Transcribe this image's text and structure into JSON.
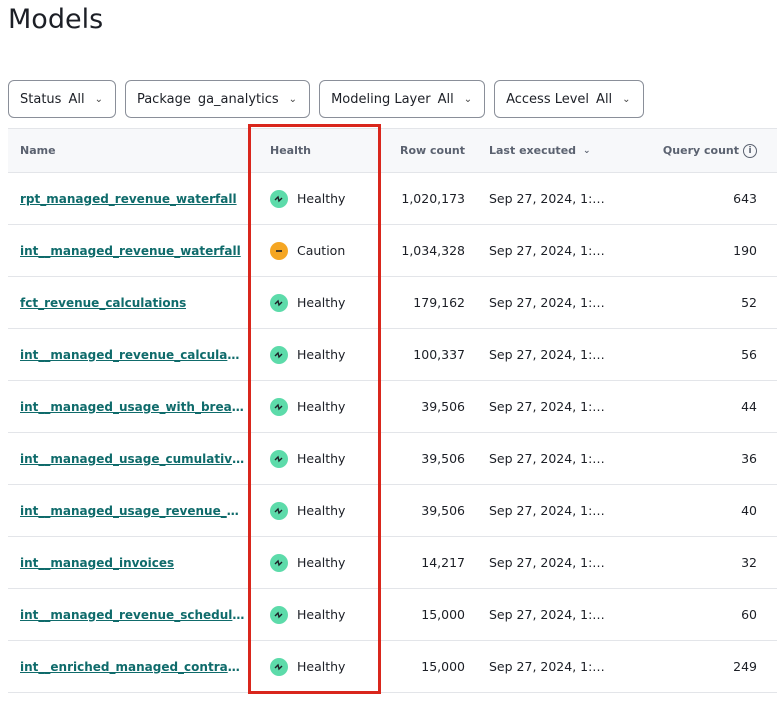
{
  "title": "Models",
  "filters": [
    {
      "label": "Status",
      "value": "All"
    },
    {
      "label": "Package",
      "value": "ga_analytics"
    },
    {
      "label": "Modeling Layer",
      "value": "All"
    },
    {
      "label": "Access Level",
      "value": "All"
    }
  ],
  "columns": {
    "name": "Name",
    "health": "Health",
    "row_count": "Row count",
    "last_executed": "Last executed",
    "query_count": "Query count"
  },
  "colors": {
    "healthy": "#5ddbaa",
    "caution": "#f5a623",
    "link": "#0f6b6b",
    "highlight": "#d9261c"
  },
  "rows": [
    {
      "name": "rpt_managed_revenue_waterfall",
      "health": "Healthy",
      "status": "healthy",
      "row_count": "1,020,173",
      "last_executed": "Sep 27, 2024, 1:…",
      "query_count": "643"
    },
    {
      "name": "int__managed_revenue_waterfall",
      "health": "Caution",
      "status": "caution",
      "row_count": "1,034,328",
      "last_executed": "Sep 27, 2024, 1:…",
      "query_count": "190"
    },
    {
      "name": "fct_revenue_calculations",
      "health": "Healthy",
      "status": "healthy",
      "row_count": "179,162",
      "last_executed": "Sep 27, 2024, 1:…",
      "query_count": "52"
    },
    {
      "name": "int__managed_revenue_calculations",
      "health": "Healthy",
      "status": "healthy",
      "row_count": "100,337",
      "last_executed": "Sep 27, 2024, 1:…",
      "query_count": "56"
    },
    {
      "name": "int__managed_usage_with_breaka…",
      "health": "Healthy",
      "status": "healthy",
      "row_count": "39,506",
      "last_executed": "Sep 27, 2024, 1:…",
      "query_count": "44"
    },
    {
      "name": "int__managed_usage_cumulative_…",
      "health": "Healthy",
      "status": "healthy",
      "row_count": "39,506",
      "last_executed": "Sep 27, 2024, 1:…",
      "query_count": "36"
    },
    {
      "name": "int__managed_usage_revenue_sc…",
      "health": "Healthy",
      "status": "healthy",
      "row_count": "39,506",
      "last_executed": "Sep 27, 2024, 1:…",
      "query_count": "40"
    },
    {
      "name": "int__managed_invoices",
      "health": "Healthy",
      "status": "healthy",
      "row_count": "14,217",
      "last_executed": "Sep 27, 2024, 1:…",
      "query_count": "32"
    },
    {
      "name": "int__managed_revenue_schedule_…",
      "health": "Healthy",
      "status": "healthy",
      "row_count": "15,000",
      "last_executed": "Sep 27, 2024, 1:…",
      "query_count": "60"
    },
    {
      "name": "int__enriched_managed_contracts",
      "health": "Healthy",
      "status": "healthy",
      "row_count": "15,000",
      "last_executed": "Sep 27, 2024, 1:…",
      "query_count": "249"
    }
  ]
}
